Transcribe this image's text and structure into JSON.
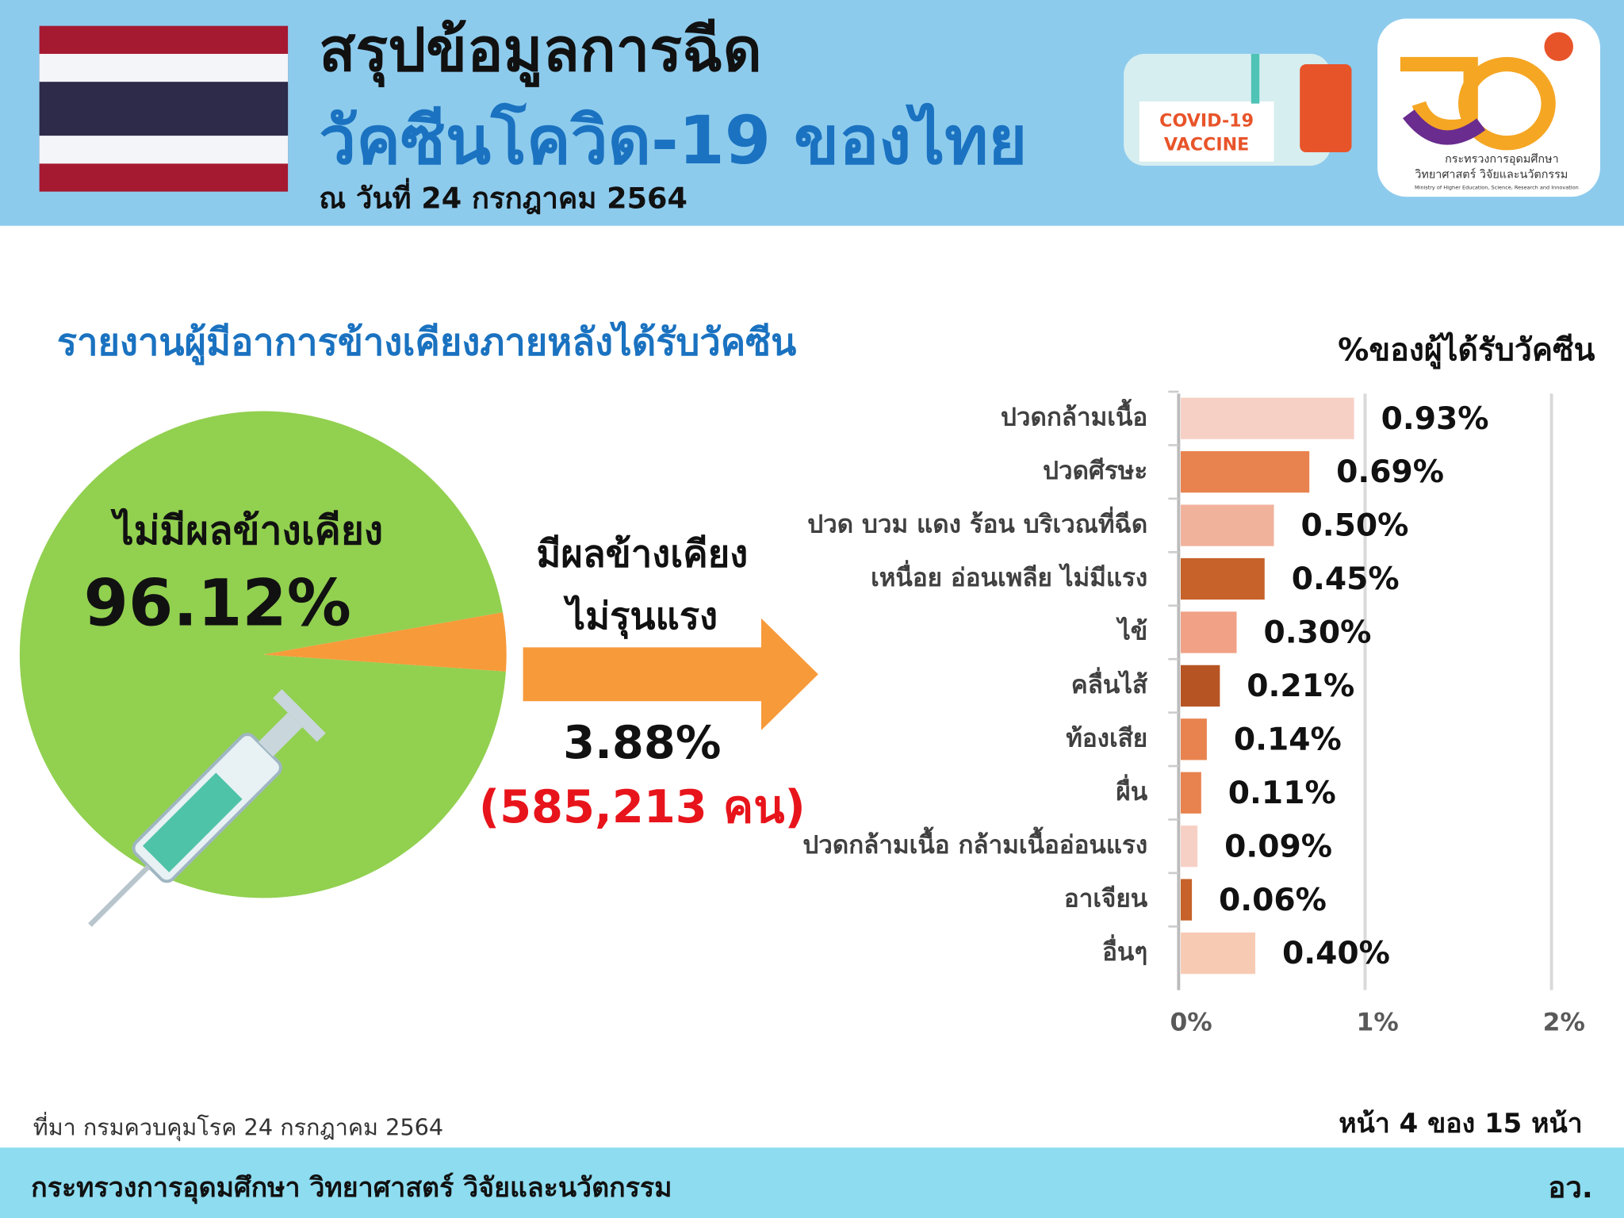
{
  "header": {
    "title": "สรุปข้อมูลการฉีด",
    "subtitle": "วัคซีนโควิด-19 ของไทย",
    "date": "ณ วันที่ 24 กรกฎาคม 2564",
    "vaccine_label": [
      "COVID-19",
      "VACCINE"
    ],
    "logo_text": [
      "กระทรวงการอุดมศึกษา",
      "วิทยาศาสตร์ วิจัยและนวัตกรรม",
      "Ministry of Higher Education, Science, Research and Innovation"
    ]
  },
  "section_title": "รายงานผู้มีอาการข้างเคียงภายหลังได้รับวัคซีน",
  "chart_data": [
    {
      "type": "pie",
      "categories": [
        "ไม่มีผลข้างเคียง",
        "มีผลข้างเคียง\nไม่รุนแรง"
      ],
      "values": [
        96.12,
        3.88
      ],
      "value_labels": [
        "96.12%",
        "3.88%"
      ],
      "colors": [
        "#92d050",
        "#f79a3a"
      ],
      "annotation": "(585,213 คน)"
    },
    {
      "type": "bar",
      "orientation": "horizontal",
      "title": "%ของผู้ได้รับวัคซีน",
      "categories": [
        "ปวดกล้ามเนื้อ",
        "ปวดศีรษะ",
        "ปวด บวม แดง ร้อน บริเวณที่ฉีด",
        "เหนื่อย อ่อนเพลีย ไม่มีแรง",
        "ไข้",
        "คลื่นไส้",
        "ท้องเสีย",
        "ผื่น",
        "ปวดกล้ามเนื้อ กล้ามเนื้ออ่อนแรง",
        "อาเจียน",
        "อื่นๆ"
      ],
      "values": [
        0.93,
        0.69,
        0.5,
        0.45,
        0.3,
        0.21,
        0.14,
        0.11,
        0.09,
        0.06,
        0.4
      ],
      "value_labels": [
        "0.93%",
        "0.69%",
        "0.50%",
        "0.45%",
        "0.30%",
        "0.21%",
        "0.14%",
        "0.11%",
        "0.09%",
        "0.06%",
        "0.40%"
      ],
      "colors": [
        "#f7d0c5",
        "#e8834f",
        "#f1b29c",
        "#c6622a",
        "#f0a186",
        "#b65423",
        "#e8834f",
        "#e8834f",
        "#f7d0c5",
        "#c6622a",
        "#f7cbb3"
      ],
      "xlim": [
        0,
        2
      ],
      "xticks": [
        {
          "value": 0,
          "label": "0%"
        },
        {
          "value": 1,
          "label": "1%"
        },
        {
          "value": 2,
          "label": "2%"
        }
      ],
      "grid": true
    }
  ],
  "source": "ที่มา กรมควบคุมโรค 24 กรกฎาคม 2564",
  "page_number": "หน้า 4 ของ 15 หน้า",
  "footer": {
    "ministry": "กระทรวงการอุดมศึกษา วิทยาศาสตร์ วิจัยและนวัตกรรม",
    "abbr": "อว."
  }
}
